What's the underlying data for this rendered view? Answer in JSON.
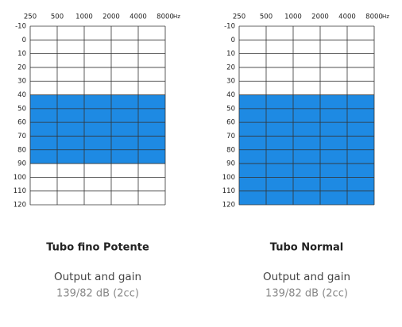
{
  "chart_data": [
    {
      "type": "band",
      "title": "Tubo fino Potente",
      "subtitle": "Output and gain",
      "note": "139/82 dB (2cc)",
      "xticks": [
        250,
        500,
        1000,
        2000,
        4000,
        8000
      ],
      "xlim": [
        250,
        8000
      ],
      "xscale": "log",
      "x_unit": "Hz",
      "ylim": [
        -10,
        120
      ],
      "y_inverted": true,
      "yticks": [
        -10,
        0,
        10,
        20,
        30,
        40,
        50,
        60,
        70,
        80,
        90,
        100,
        110,
        120
      ],
      "range": [
        40,
        90
      ],
      "color": "#1e8ae3",
      "grid": true
    },
    {
      "type": "band",
      "title": "Tubo Normal",
      "subtitle": "Output and gain",
      "note": "139/82 dB (2cc)",
      "xticks": [
        250,
        500,
        1000,
        2000,
        4000,
        8000
      ],
      "xlim": [
        250,
        8000
      ],
      "xscale": "log",
      "x_unit": "Hz",
      "ylim": [
        -10,
        120
      ],
      "y_inverted": true,
      "yticks": [
        -10,
        0,
        10,
        20,
        30,
        40,
        50,
        60,
        70,
        80,
        90,
        100,
        110,
        120
      ],
      "range": [
        40,
        120
      ],
      "color": "#1e8ae3",
      "grid": true
    }
  ]
}
